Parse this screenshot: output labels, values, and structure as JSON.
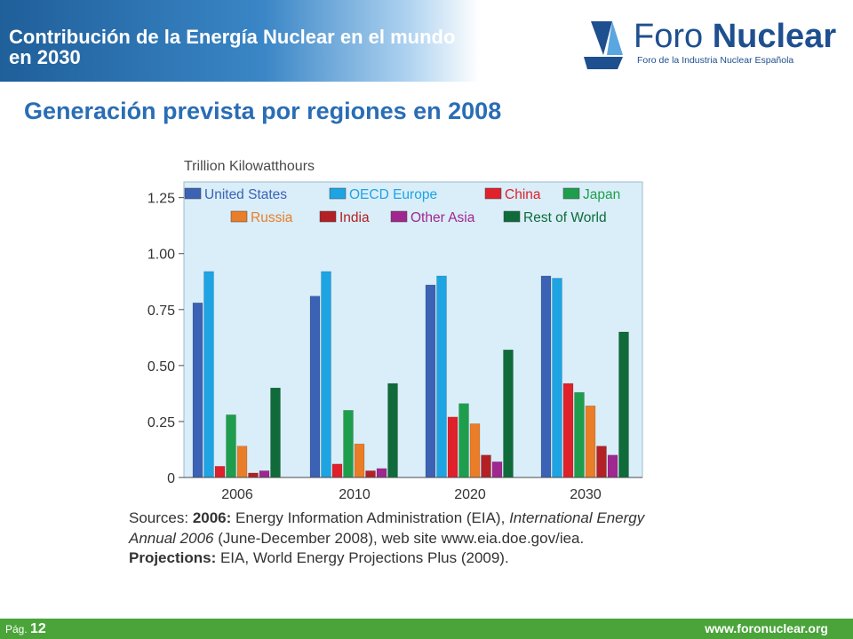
{
  "header": {
    "title": "Contribución de la Energía Nuclear en el mundo en 2030"
  },
  "logo": {
    "name_light": "Foro ",
    "name_bold": "Nuclear",
    "tagline": "Foro de la Industria Nuclear Española"
  },
  "slide_subtitle": "Generación prevista por regiones en 2008",
  "chart_data": {
    "type": "bar",
    "ylabel": "Trillion Kilowatthours",
    "categories": [
      "2006",
      "2010",
      "2020",
      "2030"
    ],
    "yticks": [
      "0",
      "0.25",
      "0.50",
      "0.75",
      "1.00",
      "1.25"
    ],
    "ylim": [
      0,
      1.32
    ],
    "grid": false,
    "legend_position": "top",
    "series": [
      {
        "name": "United States",
        "color": "#3b62b4",
        "values": [
          0.78,
          0.81,
          0.86,
          0.9
        ]
      },
      {
        "name": "OECD Europe",
        "color": "#1ea3e3",
        "values": [
          0.92,
          0.92,
          0.9,
          0.89
        ]
      },
      {
        "name": "China",
        "color": "#e0202a",
        "values": [
          0.05,
          0.06,
          0.27,
          0.42
        ]
      },
      {
        "name": "Japan",
        "color": "#1e9e4c",
        "values": [
          0.28,
          0.3,
          0.33,
          0.38
        ]
      },
      {
        "name": "Russia",
        "color": "#ea7d28",
        "values": [
          0.14,
          0.15,
          0.24,
          0.32
        ]
      },
      {
        "name": "India",
        "color": "#b32025",
        "values": [
          0.02,
          0.03,
          0.1,
          0.14
        ]
      },
      {
        "name": "Other Asia",
        "color": "#a0278f",
        "values": [
          0.03,
          0.04,
          0.07,
          0.1
        ]
      },
      {
        "name": "Rest of World",
        "color": "#0f6b3a",
        "values": [
          0.4,
          0.42,
          0.57,
          0.65
        ]
      }
    ]
  },
  "sources": {
    "prefix": "Sources: ",
    "y2006": "2006:",
    "eia": " Energy Information Administration (EIA),",
    "publication": "International Energy Annual 2006",
    "dates": " (June-December 2008),",
    "web": "web site www.eia.doe.gov/iea. ",
    "projections_label": "Projections:",
    "projections_text": " EIA, World Energy Projections Plus (2009)."
  },
  "footer": {
    "page_label": "Pág. ",
    "page_number": "12",
    "url": "www.foronuclear.org"
  },
  "colors": {
    "header_blue": "#1f5f9a",
    "subtitle_blue": "#2a6db5",
    "footer_green": "#4aa43a",
    "plot_bg": "#d9eef9"
  }
}
